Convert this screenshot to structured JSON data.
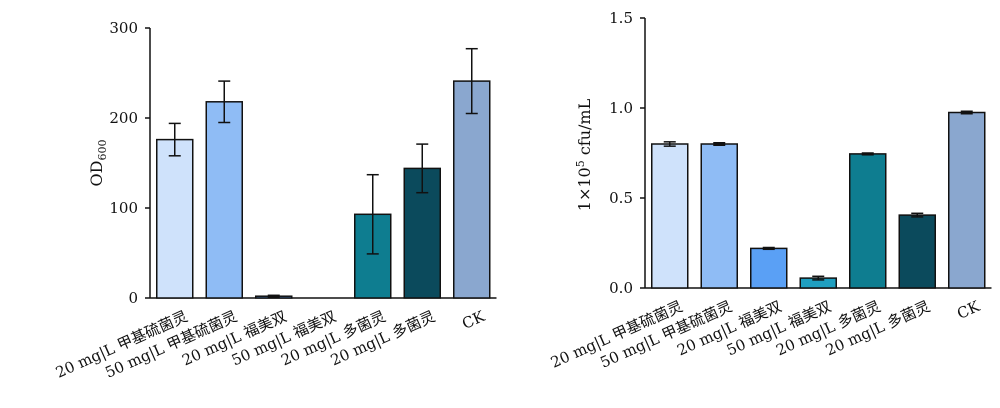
{
  "chart_data": [
    {
      "type": "bar",
      "ylabel": "OD",
      "ylabel_sub": "600",
      "ylim": [
        0,
        300
      ],
      "yticks": [
        0,
        100,
        200,
        300
      ],
      "ytick_labels": [
        "0",
        "100",
        "200",
        "300"
      ],
      "categories": [
        "20 mg|L 甲基硫菌灵",
        "50  mg|L 甲基硫菌灵",
        "20 mg|L 福美双",
        "50 mg|L 福美双",
        "20 mg|L 多菌灵",
        "20 mg|L 多菌灵",
        "CK"
      ],
      "values": [
        176,
        218,
        2,
        0,
        93,
        144,
        241
      ],
      "errors": [
        18,
        23,
        1,
        0,
        44,
        27,
        36
      ],
      "colors": [
        "#cfe2fb",
        "#8fbcf5",
        "#5aa0f5",
        "#1f9fc0",
        "#0e7d90",
        "#0b4a5c",
        "#8aa7cf"
      ],
      "grid": false,
      "legend": "none"
    },
    {
      "type": "bar",
      "ylabel": "1×10",
      "ylabel_sup": "5",
      "ylabel_unit": " cfu/mL",
      "ylim": [
        0,
        1.5
      ],
      "yticks": [
        0,
        0.5,
        1.0,
        1.5
      ],
      "ytick_labels": [
        "0.0",
        "0.5",
        "1.0",
        "1.5"
      ],
      "categories": [
        "20 mg|L 甲基硫菌灵",
        "50  mg|L 甲基硫菌灵",
        "20 mg|L 福美双",
        "50  mg|L 福美双",
        "20 mg|L 多菌灵",
        "20 mg|L 多菌灵",
        "CK"
      ],
      "values": [
        0.8,
        0.8,
        0.22,
        0.055,
        0.745,
        0.405,
        0.975
      ],
      "errors": [
        0.012,
        0.007,
        0.005,
        0.01,
        0.005,
        0.01,
        0.007
      ],
      "colors": [
        "#cfe2fb",
        "#8fbcf5",
        "#5aa0f5",
        "#1f9fc0",
        "#0e7d90",
        "#0b4a5c",
        "#8aa7cf"
      ],
      "grid": false,
      "legend": "none"
    }
  ]
}
